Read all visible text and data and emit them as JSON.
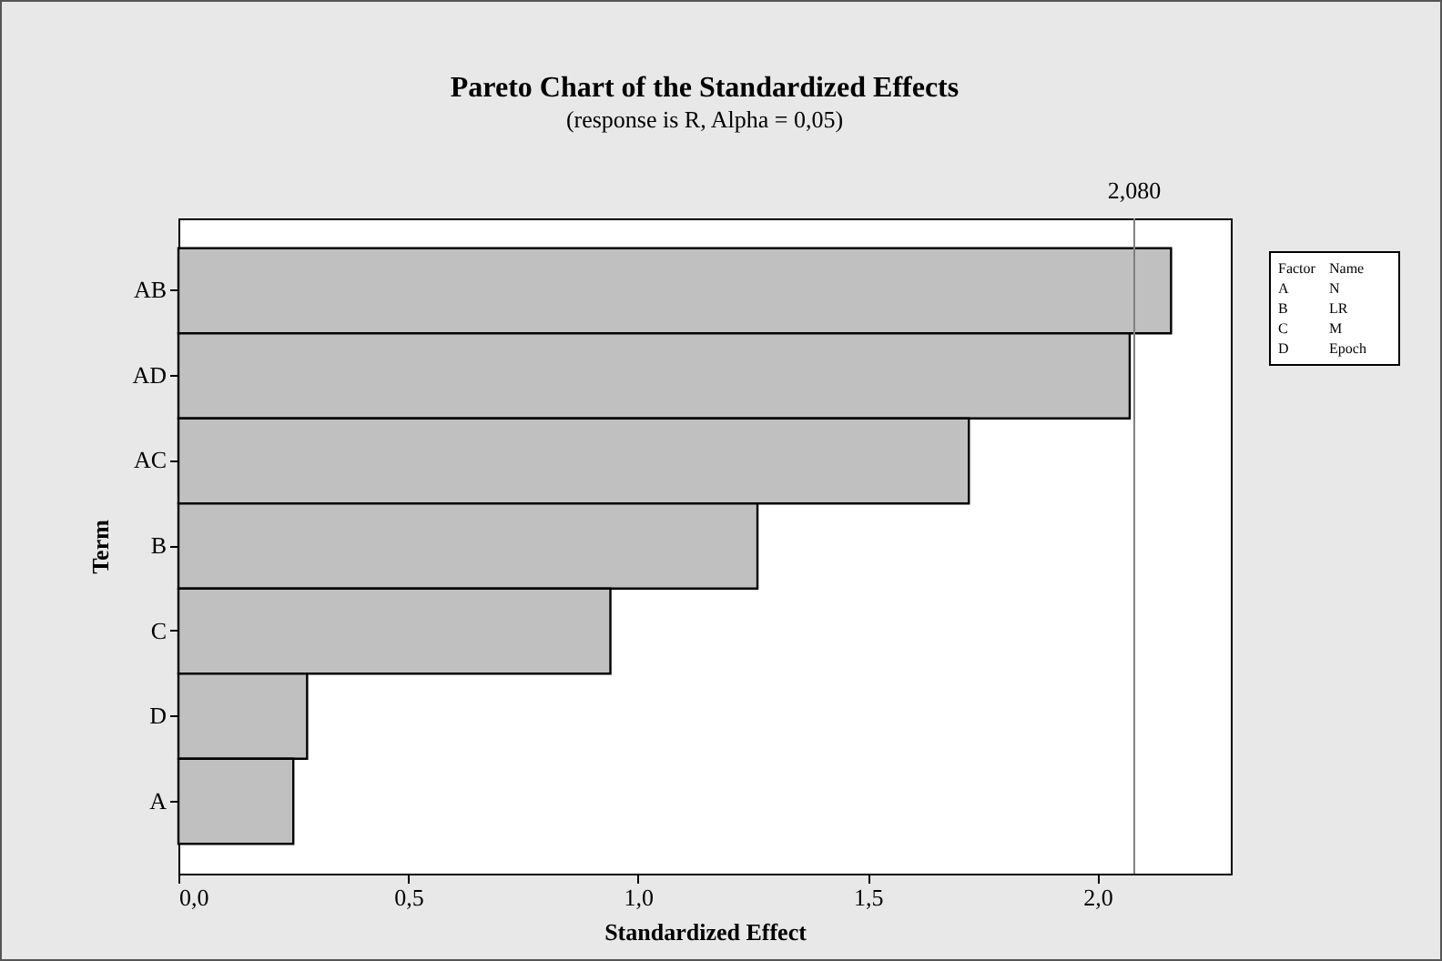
{
  "chart_data": {
    "type": "bar",
    "orientation": "horizontal",
    "title": "Pareto Chart of the Standardized Effects",
    "subtitle": "(response is R, Alpha = 0,05)",
    "xlabel": "Standardized Effect",
    "ylabel": "Term",
    "categories": [
      "AB",
      "AD",
      "AC",
      "B",
      "C",
      "D",
      "A"
    ],
    "values": [
      2.16,
      2.07,
      1.72,
      1.26,
      0.94,
      0.28,
      0.25
    ],
    "color": "#c0c0c0",
    "xlim": [
      0,
      2.29
    ],
    "xticks": [
      {
        "value": 0,
        "label": "0,0"
      },
      {
        "value": 0.5,
        "label": "0,5"
      },
      {
        "value": 1,
        "label": "1,0"
      },
      {
        "value": 1.5,
        "label": "1,5"
      },
      {
        "value": 2,
        "label": "2,0"
      }
    ],
    "ref_lines": [
      {
        "axis": "x",
        "value": 2.08,
        "label": "2,080",
        "color": "#808080"
      }
    ],
    "annotations": [
      "Factor",
      "Name",
      "A",
      "N",
      "B",
      "LR",
      "C",
      "M",
      "D",
      "Epoch"
    ],
    "grid": false
  }
}
